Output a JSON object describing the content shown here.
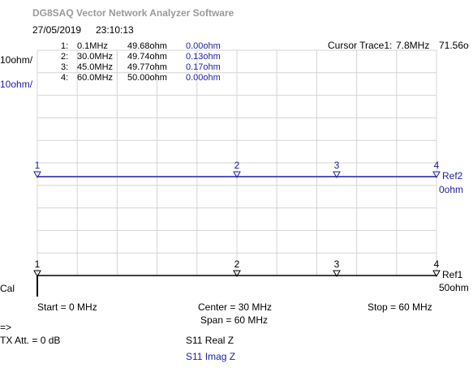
{
  "header": {
    "title": "DG8SAQ Vector Network Analyzer Software",
    "date": "27/05/2019",
    "time": "23:10:13"
  },
  "cursor": {
    "label": "Cursor Trace1:",
    "freq": "7.8MHz",
    "value": "71.56o"
  },
  "markers": [
    {
      "id": "1:",
      "freq": "0.1MHz",
      "real": "49.68ohm",
      "imag": "0.00ohm"
    },
    {
      "id": "2:",
      "freq": "30.0MHz",
      "real": "49.74ohm",
      "imag": "0.13ohm"
    },
    {
      "id": "3:",
      "freq": "45.0MHz",
      "real": "49.77ohm",
      "imag": "0.17ohm"
    },
    {
      "id": "4:",
      "freq": "60.0MHz",
      "real": "50.00ohm",
      "imag": "0.00ohm"
    }
  ],
  "marker_labels": [
    "1",
    "2",
    "3",
    "4"
  ],
  "scales": {
    "trace1": "10ohm/",
    "trace2": "10ohm/"
  },
  "refs": {
    "ref2": "Ref2",
    "ref2_value": "0ohm",
    "ref1": "Ref1",
    "ref1_value": "50ohm"
  },
  "cal": "Cal",
  "freq_axis": {
    "start": "Start = 0 MHz",
    "center": "Center = 30 MHz",
    "span": "Span = 60 MHz",
    "stop": "Stop = 60 MHz"
  },
  "footer": {
    "arrow": "=>",
    "tx_att": "TX Att. = 0 dB",
    "trace1": "S11 Real Z",
    "trace2": "S11 Imag Z"
  }
}
